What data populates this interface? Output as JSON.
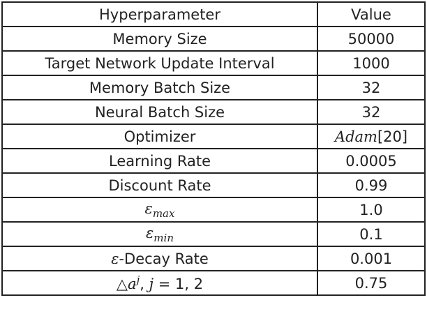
{
  "table": {
    "header": [
      "Hyperparameter",
      "Value"
    ],
    "rows": [
      [
        "Memory Size",
        "50000"
      ],
      [
        "Target Network Update Interval",
        "1000"
      ],
      [
        "Memory Batch Size",
        "32"
      ],
      [
        "Neural Batch Size",
        "32"
      ],
      [
        "Optimizer",
        [
          {
            "text": "Adam",
            "style": "italic"
          },
          {
            "text": "[20]",
            "style": "normal"
          }
        ]
      ],
      [
        "Learning Rate",
        "0.0005"
      ],
      [
        "Discount Rate",
        "0.99"
      ],
      [
        [
          {
            "text": "ε",
            "style": "italic"
          },
          {
            "text": "max",
            "style": "sub"
          }
        ],
        "1.0"
      ],
      [
        [
          {
            "text": "ε",
            "style": "italic"
          },
          {
            "text": "min",
            "style": "sub"
          }
        ],
        "0.1"
      ],
      [
        [
          {
            "text": "ε",
            "style": "italic"
          },
          {
            "text": "-Decay Rate",
            "style": "normal"
          }
        ],
        "0.001"
      ],
      [
        [
          {
            "text": "△",
            "style": "normal"
          },
          {
            "text": "a",
            "style": "italic"
          },
          {
            "text": "j",
            "style": "sup"
          },
          {
            "text": ", ",
            "style": "normal"
          },
          {
            "text": "j",
            "style": "italic"
          },
          {
            "text": " = 1, 2",
            "style": "normal"
          }
        ],
        "0.75"
      ]
    ]
  }
}
